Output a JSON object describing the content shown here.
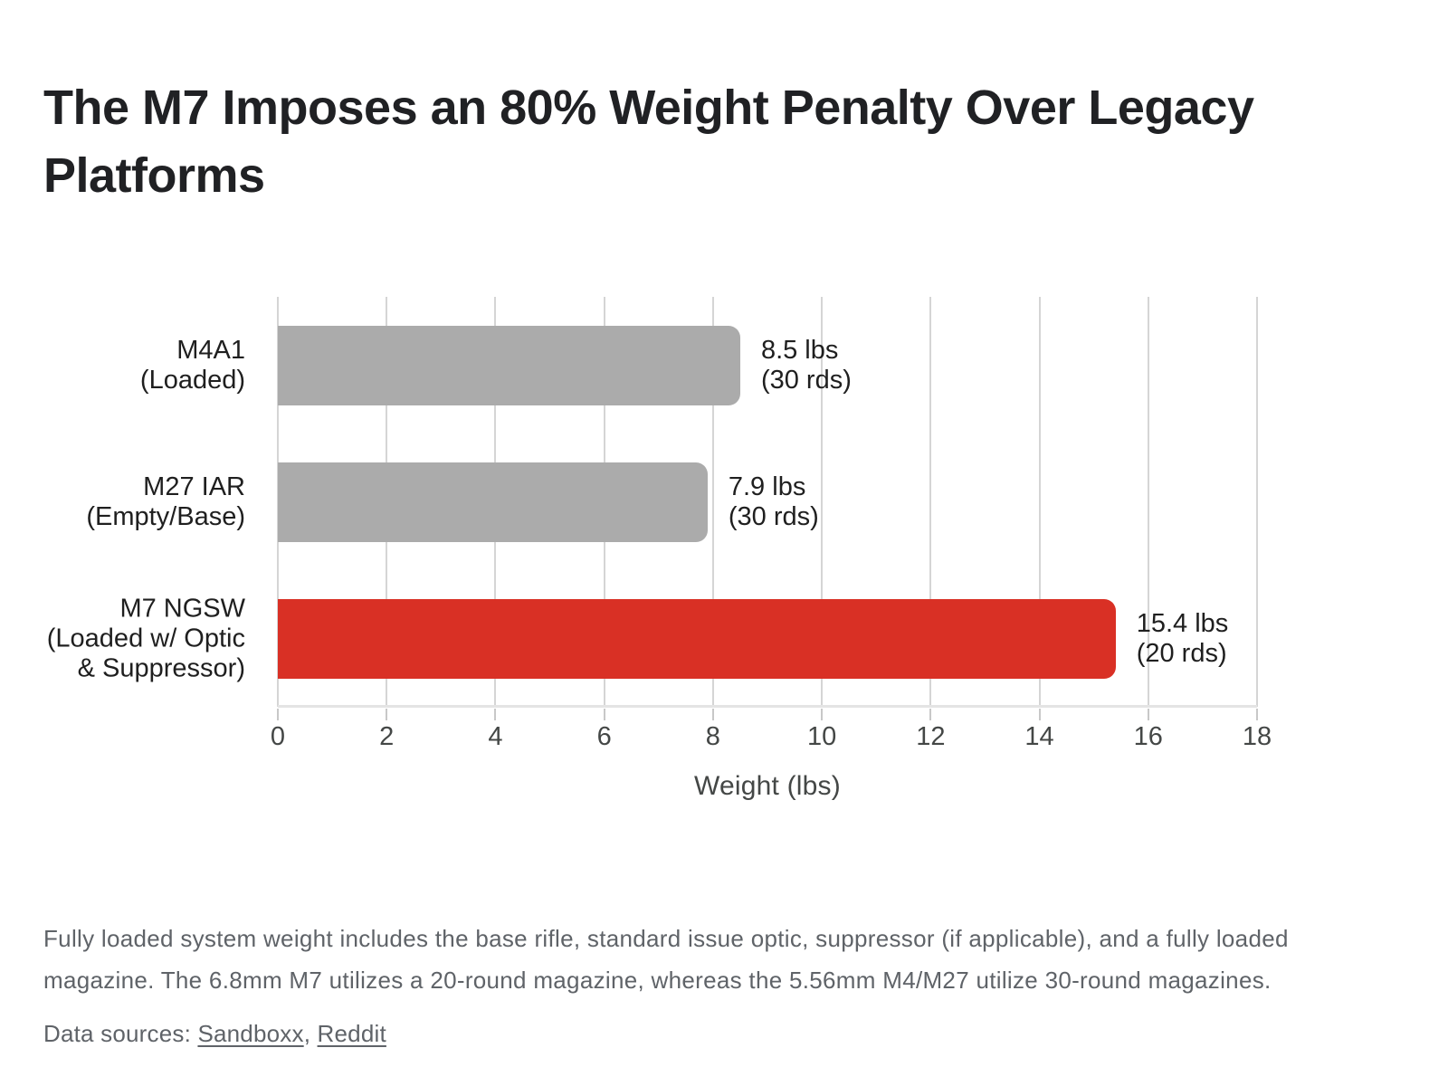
{
  "page": {
    "title": "The M7 Imposes an 80% Weight Penalty Over Legacy\nPlatforms",
    "footnote": "Fully loaded system weight includes the base rifle, standard issue optic, suppressor (if applicable), and a fully loaded\nmagazine. The 6.8mm M7 utilizes a 20-round magazine, whereas the 5.56mm M4/M27 utilize 30-round magazines.",
    "sources": {
      "prefix": "Data sources: ",
      "links": [
        "Sandboxx",
        "Reddit"
      ],
      "comma": ", "
    }
  },
  "chart_data": {
    "type": "bar",
    "orientation": "horizontal",
    "title": "The M7 Imposes an 80% Weight Penalty Over Legacy Platforms",
    "categories": [
      "M4A1\n(Loaded)",
      "M27 IAR\n(Empty/Base)",
      "M7 NGSW\n(Loaded w/ Optic\n& Suppressor)"
    ],
    "values": [
      8.5,
      7.9,
      15.4
    ],
    "annotations": [
      "8.5 lbs\n(30 rds)",
      "7.9 lbs\n(30 rds)",
      "15.4 lbs\n(20 rds)"
    ],
    "bar_colors": [
      "#ababab",
      "#ababab",
      "#d93025"
    ],
    "xlabel": "Weight (lbs)",
    "xlim": [
      0,
      18
    ],
    "xticks": [
      0,
      2,
      4,
      6,
      8,
      10,
      12,
      14,
      16,
      18
    ],
    "grid": "vertical",
    "legend": "none",
    "colors": {
      "gridline": "#d5d5d5",
      "axis_line": "#e4e4e4",
      "tick_mark": "#c8c8c8",
      "title_text": "#202124",
      "label_text": "#1f1f1f",
      "axis_text": "#444746",
      "muted_text": "#5f6368"
    }
  }
}
